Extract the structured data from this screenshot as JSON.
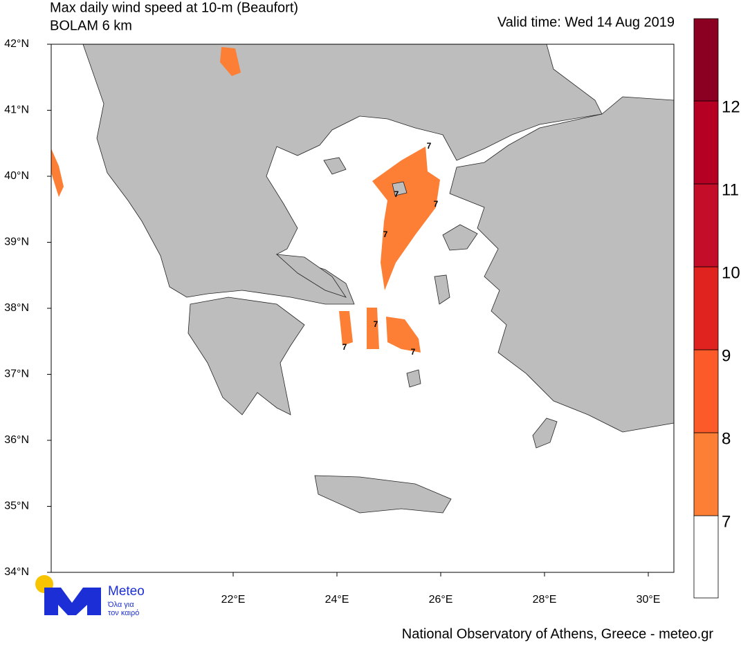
{
  "header": {
    "title": "Max daily wind speed at 10-m (Beaufort)",
    "subtitle": "BOLAM 6 km",
    "valid_time": "Valid time: Wed 14 Aug 2019"
  },
  "map": {
    "lat_ticks": [
      "34°N",
      "35°N",
      "36°N",
      "37°N",
      "38°N",
      "39°N",
      "40°N",
      "41°N",
      "42°N"
    ],
    "lon_ticks": [
      "22°E",
      "24°E",
      "26°E",
      "28°E",
      "30°E"
    ],
    "contour_labels": [
      "7",
      "7",
      "7",
      "7",
      "7",
      "7",
      "7"
    ]
  },
  "colorbar": {
    "levels": [
      {
        "label": "7",
        "color": "#fd7f35"
      },
      {
        "label": "8",
        "color": "#fd5a29"
      },
      {
        "label": "9",
        "color": "#e0231f"
      },
      {
        "label": "10",
        "color": "#c40d28"
      },
      {
        "label": "11",
        "color": "#b50024"
      },
      {
        "label": "12",
        "color": "#8b0022"
      }
    ]
  },
  "logo": {
    "name": "Meteo",
    "tagline_1": "Όλα για",
    "tagline_2": "τον καιρό"
  },
  "footer": "National Observatory of Athens, Greece - meteo.gr"
}
